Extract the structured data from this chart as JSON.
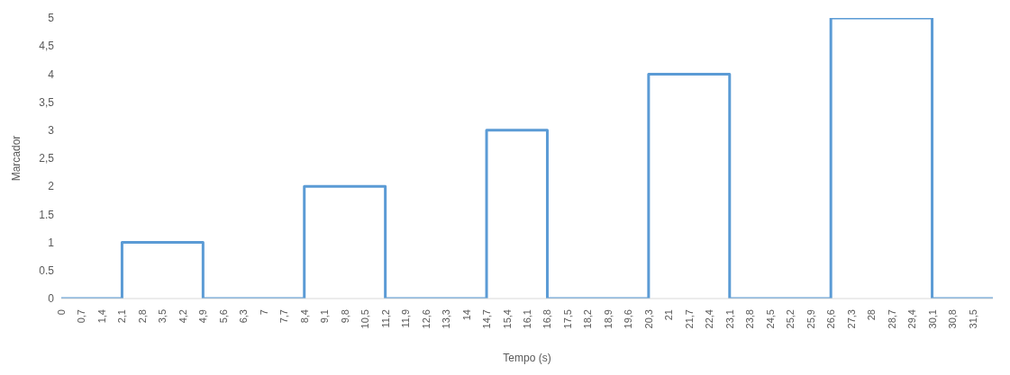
{
  "chart_data": {
    "type": "line",
    "xlabel": "Tempo (s)",
    "ylabel": "Marcador",
    "x": [
      0,
      2.1,
      2.1,
      4.9,
      4.9,
      8.4,
      8.4,
      11.2,
      11.2,
      14.7,
      14.7,
      16.8,
      16.8,
      20.3,
      20.3,
      23.1,
      23.1,
      26.6,
      26.6,
      30.1,
      30.1,
      32.2
    ],
    "series": [
      {
        "color": "#5b9bd5",
        "values": [
          0,
          0,
          1,
          1,
          0,
          0,
          2,
          2,
          0,
          0,
          3,
          3,
          0,
          0,
          4,
          4,
          0,
          0,
          5,
          5,
          0,
          0
        ]
      }
    ],
    "xlim": [
      0,
      32.2
    ],
    "xticks": [
      0,
      {
        "value": 0.7,
        "label": "0,7"
      },
      {
        "value": 1.4,
        "label": "1,4"
      },
      {
        "value": 2.1,
        "label": "2,1"
      },
      {
        "value": 2.8,
        "label": "2,8"
      },
      {
        "value": 3.5,
        "label": "3,5"
      },
      {
        "value": 4.2,
        "label": "4,2"
      },
      {
        "value": 4.9,
        "label": "4,9"
      },
      {
        "value": 5.6,
        "label": "5,6"
      },
      {
        "value": 6.3,
        "label": "6,3"
      },
      7,
      {
        "value": 7.7,
        "label": "7,7"
      },
      {
        "value": 8.4,
        "label": "8,4"
      },
      {
        "value": 9.1,
        "label": "9,1"
      },
      {
        "value": 9.8,
        "label": "9,8"
      },
      {
        "value": 10.5,
        "label": "10,5"
      },
      {
        "value": 11.2,
        "label": "11,2"
      },
      {
        "value": 11.9,
        "label": "11,9"
      },
      {
        "value": 12.6,
        "label": "12,6"
      },
      {
        "value": 13.3,
        "label": "13,3"
      },
      14,
      {
        "value": 14.7,
        "label": "14,7"
      },
      {
        "value": 15.4,
        "label": "15,4"
      },
      {
        "value": 16.1,
        "label": "16,1"
      },
      {
        "value": 16.8,
        "label": "16,8"
      },
      {
        "value": 17.5,
        "label": "17,5"
      },
      {
        "value": 18.2,
        "label": "18,2"
      },
      {
        "value": 18.9,
        "label": "18,9"
      },
      {
        "value": 19.6,
        "label": "19,6"
      },
      {
        "value": 20.3,
        "label": "20,3"
      },
      21,
      {
        "value": 21.7,
        "label": "21,7"
      },
      {
        "value": 22.4,
        "label": "22,4"
      },
      {
        "value": 23.1,
        "label": "23,1"
      },
      {
        "value": 23.8,
        "label": "23,8"
      },
      {
        "value": 24.5,
        "label": "24,5"
      },
      {
        "value": 25.2,
        "label": "25,2"
      },
      {
        "value": 25.9,
        "label": "25,9"
      },
      {
        "value": 26.6,
        "label": "26,6"
      },
      {
        "value": 27.3,
        "label": "27,3"
      },
      28,
      {
        "value": 28.7,
        "label": "28,7"
      },
      {
        "value": 29.4,
        "label": "29,4"
      },
      {
        "value": 30.1,
        "label": "30,1"
      },
      {
        "value": 30.8,
        "label": "30,8"
      },
      {
        "value": 31.5,
        "label": "31,5"
      }
    ],
    "ylim": [
      0,
      5
    ],
    "yticks": [
      0,
      {
        "value": 0.5,
        "label": "0.5"
      },
      1,
      {
        "value": 1.5,
        "label": "1.5"
      },
      2,
      {
        "value": 2.5,
        "label": "2,5"
      },
      3,
      {
        "value": 3.5,
        "label": "3,5"
      },
      4,
      {
        "value": 4.5,
        "label": "4,5"
      },
      5
    ],
    "grid": false,
    "marker": "none",
    "line_style": "solid"
  }
}
